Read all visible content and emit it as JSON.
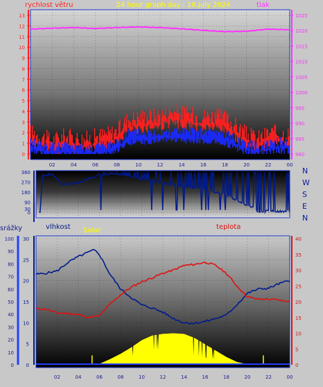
{
  "colors": {
    "wind_red": "#ff2020",
    "wind_blue": "#1a2aff",
    "pressure": "#ff30ff",
    "direction": "#001a8c",
    "title_yellow": "#ffff00",
    "humidity": "#001a8c",
    "temperature": "#e01010",
    "solar": "#ffff00",
    "rain": "#2040ff",
    "panel_bg": "#c8c8c8"
  },
  "chart_data": [
    {
      "id": "wind-pressure",
      "type": "line",
      "title": "24 hour graph day : 16.July 2024",
      "left_label": "rychlost větru",
      "right_label": "tlak",
      "x_ticks": [
        "02",
        "04",
        "06",
        "08",
        "10",
        "12",
        "14",
        "16",
        "18",
        "20",
        "22",
        "00"
      ],
      "y_left": {
        "min": 0,
        "max": 13,
        "ticks": [
          "0",
          "1",
          "2",
          "3",
          "4",
          "5",
          "6",
          "7",
          "8",
          "9",
          "10",
          "11",
          "12",
          "13"
        ]
      },
      "y_right": {
        "min": 980,
        "max": 1025,
        "ticks": [
          "980",
          "985",
          "990",
          "995",
          "1000",
          "1005",
          "1010",
          "1015",
          "1020",
          "1025"
        ]
      },
      "series": [
        {
          "key": "wind_gust",
          "hours": [
            0,
            1,
            2,
            3,
            4,
            5,
            6,
            7,
            8,
            9,
            10,
            11,
            12,
            13,
            14,
            15,
            16,
            17,
            18,
            19,
            20,
            21,
            22,
            23,
            24
          ],
          "values": [
            2.0,
            1.6,
            1.2,
            1.6,
            1.5,
            1.3,
            1.6,
            1.8,
            2.1,
            3.2,
            3.4,
            3.5,
            3.6,
            3.9,
            3.8,
            3.6,
            3.5,
            3.5,
            3.3,
            2.6,
            1.8,
            1.4,
            1.9,
            1.9,
            1.8
          ]
        },
        {
          "key": "wind_avg",
          "hours": [
            0,
            1,
            2,
            3,
            4,
            5,
            6,
            7,
            8,
            9,
            10,
            11,
            12,
            13,
            14,
            15,
            16,
            17,
            18,
            19,
            20,
            21,
            22,
            23,
            24
          ],
          "values": [
            1.0,
            0.8,
            0.5,
            0.7,
            0.6,
            0.4,
            0.6,
            0.7,
            1.0,
            1.8,
            1.9,
            1.8,
            2.0,
            2.1,
            2.0,
            1.9,
            1.9,
            1.9,
            1.7,
            1.3,
            0.9,
            0.6,
            0.9,
            1.0,
            1.0
          ]
        },
        {
          "key": "pressure",
          "hours": [
            0,
            2,
            4,
            6,
            8,
            10,
            12,
            14,
            16,
            18,
            20,
            22,
            24
          ],
          "values": [
            1020.5,
            1020.8,
            1021.0,
            1020.7,
            1021.0,
            1021.2,
            1021.0,
            1020.6,
            1020.1,
            1019.7,
            1019.8,
            1020.5,
            1020.3
          ]
        }
      ]
    },
    {
      "id": "wind-direction",
      "type": "line",
      "x_ticks": [
        "02",
        "04",
        "06",
        "08",
        "10",
        "12",
        "14",
        "16",
        "18",
        "20",
        "22",
        "00"
      ],
      "y_ticks": [
        "0",
        "30",
        "90",
        "180",
        "270",
        "360"
      ],
      "compass": [
        "N",
        "W",
        "S",
        "E",
        "N"
      ],
      "series": [
        {
          "key": "direction_base",
          "hours": [
            0.4,
            0.6,
            1.5,
            2.5,
            3.5,
            4.0,
            5.0,
            6.0,
            7.0,
            8.0,
            10,
            12,
            14,
            16,
            18,
            19.5,
            20.5,
            21,
            22,
            23,
            24
          ],
          "values": [
            5,
            330,
            340,
            250,
            255,
            260,
            305,
            335,
            345,
            335,
            300,
            260,
            230,
            200,
            160,
            80,
            45,
            5,
            10,
            5,
            5
          ]
        }
      ]
    },
    {
      "id": "temp-humidity-solar",
      "type": "line",
      "labels": {
        "rain": "srážky",
        "humidity": "vlhkost",
        "solar": "Solar",
        "temperature": "teplota"
      },
      "x_ticks": [
        "02",
        "04",
        "06",
        "08",
        "10",
        "12",
        "14",
        "16",
        "18",
        "20",
        "22",
        "00"
      ],
      "y_rain": {
        "ticks": [
          "0",
          "10",
          "20",
          "30",
          "40",
          "50",
          "60",
          "70",
          "80",
          "90",
          "100"
        ]
      },
      "y_humidity": {
        "min": 0,
        "max": 30,
        "ticks": [
          "0",
          "5",
          "10",
          "15",
          "20",
          "25",
          "30"
        ]
      },
      "y_temp": {
        "min": 0,
        "max": 40,
        "ticks": [
          "0",
          "5",
          "10",
          "15",
          "20",
          "25",
          "30",
          "35",
          "40"
        ]
      },
      "series": [
        {
          "key": "humidity",
          "hours": [
            0,
            1,
            2,
            3,
            4,
            5,
            5.5,
            6,
            7,
            8,
            9,
            10,
            11,
            12,
            13,
            14,
            15,
            16,
            17,
            18,
            19,
            20,
            21,
            22,
            23,
            24
          ],
          "values": [
            21.5,
            21.8,
            22.3,
            24.3,
            25.7,
            26.8,
            27.3,
            26.2,
            21.5,
            18.0,
            16.0,
            14.2,
            13.5,
            12.5,
            11.0,
            10.0,
            9.9,
            10.3,
            11.0,
            11.8,
            14.3,
            17.0,
            18.0,
            18.2,
            19.3,
            20.0
          ]
        },
        {
          "key": "temperature",
          "hours": [
            0,
            1,
            2,
            3,
            4,
            5,
            6,
            7,
            8,
            9,
            10,
            11,
            12,
            13,
            14,
            15,
            16,
            17,
            18,
            19,
            20,
            21,
            22,
            23,
            24
          ],
          "values": [
            17.8,
            17.6,
            16.4,
            16.3,
            15.9,
            15.0,
            15.5,
            19.2,
            22.2,
            24.6,
            26.3,
            27.6,
            29.0,
            30.0,
            31.5,
            31.8,
            32.5,
            31.5,
            29.0,
            25.0,
            21.5,
            20.8,
            20.8,
            20.5,
            20.0
          ]
        },
        {
          "key": "solar",
          "hours": [
            5.5,
            6,
            7,
            8,
            9,
            10,
            11,
            12,
            13,
            14,
            15,
            16,
            17,
            18,
            19,
            20,
            20.5
          ],
          "values": [
            0,
            0.3,
            1.8,
            3.5,
            5.5,
            7.8,
            9.3,
            9.8,
            10.0,
            9.8,
            8.5,
            6.5,
            4.5,
            2.5,
            0.9,
            0.2,
            0
          ]
        },
        {
          "key": "rain",
          "hours": [
            0,
            24
          ],
          "values": [
            0,
            0
          ]
        }
      ]
    }
  ]
}
